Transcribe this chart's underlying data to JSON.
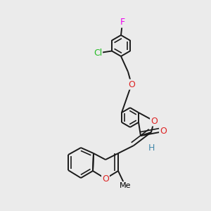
{
  "bg_color": "#ebebeb",
  "bond_color": "#1a1a1a",
  "bond_width": 1.4,
  "dbo": 0.018,
  "F_color": "#ee00ee",
  "Cl_color": "#22bb22",
  "O_color": "#dd2222",
  "H_color": "#4488aa",
  "fig_size": [
    3.0,
    3.0
  ],
  "dpi": 100,
  "xlim": [
    0,
    300
  ],
  "ylim": [
    0,
    300
  ]
}
